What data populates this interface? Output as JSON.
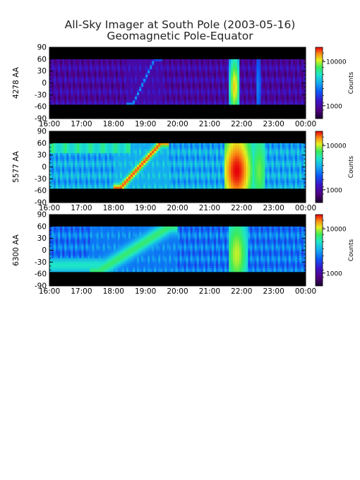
{
  "title": "All-Sky Imager at South Pole (2003-05-16)",
  "subtitle": "Geomagnetic Pole-Equator",
  "chart_data": {
    "type": "heatmap",
    "x_ticks": [
      "16:00",
      "17:00",
      "18:00",
      "19:00",
      "20:00",
      "21:00",
      "22:00",
      "23:00",
      "00:00"
    ],
    "x_range": [
      "16:00",
      "00:00"
    ],
    "y_ticks": [
      90,
      60,
      30,
      0,
      -30,
      -60,
      -90
    ],
    "y_range": [
      -90,
      90
    ],
    "colorbar": {
      "label": "Counts",
      "scale": "log",
      "ticks": [
        1000,
        10000
      ],
      "tick_labels": [
        "1000",
        "10000"
      ]
    },
    "panels": [
      {
        "ylabel": "4278 AA",
        "valid_lat": [
          -55,
          62
        ],
        "base_level": 0.18,
        "features": [
          {
            "kind": "rising_arc",
            "t0": 18.6,
            "t1": 19.3,
            "lat0": -55,
            "lat1": 62,
            "level": 0.5,
            "width": 4
          },
          {
            "kind": "burst",
            "t0": 21.6,
            "t1": 21.95,
            "peak_t": 21.78,
            "level": 0.85
          },
          {
            "kind": "burst",
            "t0": 22.45,
            "t1": 22.6,
            "peak_t": 22.52,
            "level": 0.45
          }
        ]
      },
      {
        "ylabel": "5577 AA",
        "valid_lat": [
          -55,
          62
        ],
        "base_level": 0.5,
        "features": [
          {
            "kind": "rising_arc",
            "t0": 18.2,
            "t1": 19.5,
            "lat0": -55,
            "lat1": 62,
            "level": 0.95,
            "width": 8
          },
          {
            "kind": "band_north",
            "t0": 16.0,
            "t1": 18.5,
            "level": 0.7
          },
          {
            "kind": "burst",
            "t0": 21.5,
            "t1": 22.3,
            "peak_t": 21.85,
            "level": 1.0
          },
          {
            "kind": "burst",
            "t0": 22.35,
            "t1": 22.75,
            "peak_t": 22.55,
            "level": 0.75
          }
        ]
      },
      {
        "ylabel": "6300 AA",
        "valid_lat": [
          -55,
          62
        ],
        "base_level": 0.42,
        "features": [
          {
            "kind": "rising_arc",
            "t0": 17.5,
            "t1": 19.8,
            "lat0": -55,
            "lat1": 62,
            "level": 0.7,
            "width": 14
          },
          {
            "kind": "band_south",
            "t0": 16.0,
            "t1": 18.0,
            "level": 0.62
          },
          {
            "kind": "burst",
            "t0": 21.6,
            "t1": 22.2,
            "peak_t": 21.85,
            "level": 0.8
          }
        ]
      }
    ]
  }
}
